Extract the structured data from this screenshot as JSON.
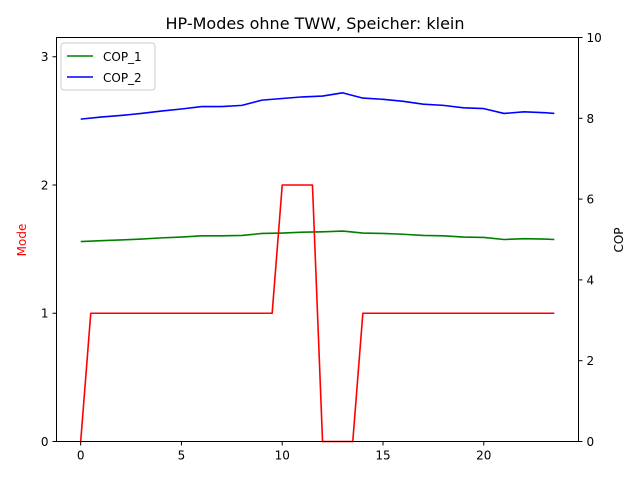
{
  "chart_data": {
    "type": "line",
    "title": "HP-Modes ohne TWW, Speicher: klein",
    "x_ticks": [
      0,
      5,
      10,
      15,
      20
    ],
    "xlim": [
      -1.2,
      24.7
    ],
    "left_axis": {
      "label": "Mode",
      "label_color": "#ff0000",
      "ylim": [
        0,
        3.15
      ],
      "ticks": [
        0,
        1,
        2,
        3
      ]
    },
    "right_axis": {
      "label": "COP",
      "ylim": [
        0,
        10
      ],
      "ticks": [
        0,
        2,
        4,
        6,
        8,
        10
      ]
    },
    "legend": {
      "placement": "upper-left"
    },
    "series": [
      {
        "name": "COP_1",
        "axis": "right",
        "color": "#008000",
        "x": [
          0,
          1,
          2,
          3,
          4,
          5,
          6,
          7,
          8,
          9,
          10,
          11,
          12,
          13,
          14,
          15,
          16,
          17,
          18,
          19,
          20,
          21,
          22,
          23,
          23.5
        ],
        "y": [
          4.95,
          4.97,
          4.99,
          5.01,
          5.04,
          5.06,
          5.09,
          5.09,
          5.1,
          5.15,
          5.16,
          5.18,
          5.19,
          5.21,
          5.16,
          5.15,
          5.13,
          5.1,
          5.09,
          5.06,
          5.05,
          5.0,
          5.02,
          5.01,
          5.0
        ]
      },
      {
        "name": "COP_2",
        "axis": "right",
        "color": "#0000ff",
        "x": [
          0,
          1,
          2,
          3,
          4,
          5,
          6,
          7,
          8,
          9,
          10,
          11,
          12,
          13,
          14,
          15,
          16,
          17,
          18,
          19,
          20,
          21,
          22,
          23,
          23.5
        ],
        "y": [
          7.98,
          8.03,
          8.07,
          8.12,
          8.18,
          8.23,
          8.29,
          8.29,
          8.32,
          8.45,
          8.49,
          8.53,
          8.55,
          8.63,
          8.5,
          8.47,
          8.42,
          8.35,
          8.32,
          8.26,
          8.24,
          8.12,
          8.16,
          8.14,
          8.12
        ]
      },
      {
        "name": "Mode",
        "axis": "left",
        "color": "#ff0000",
        "x": [
          0,
          0.5,
          9.5,
          10,
          11.5,
          12,
          13.5,
          14,
          23.5
        ],
        "y": [
          0,
          1,
          1,
          2,
          2,
          0,
          0,
          1,
          1
        ]
      }
    ]
  }
}
